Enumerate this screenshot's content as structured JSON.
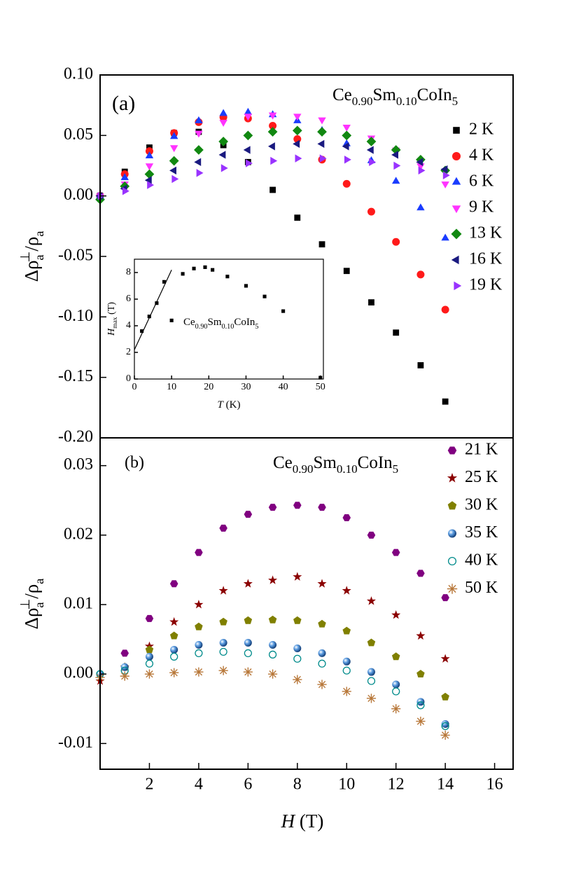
{
  "chart_data": [
    {
      "type": "scatter",
      "panel_label": "(a)",
      "compound": [
        "Ce",
        "0.90",
        "Sm",
        "0.10",
        "CoIn",
        "5"
      ],
      "ylabel": [
        "Δρ",
        "a",
        "⊥",
        "/ρ",
        "a"
      ],
      "xlim": [
        0,
        16.75
      ],
      "ylim": [
        -0.2,
        0.1
      ],
      "yticks": [
        {
          "value": 0.1,
          "label": "0.10"
        },
        0.05,
        {
          "value": 0.0,
          "label": "0.00"
        },
        -0.05,
        {
          "value": -0.1,
          "label": "-0.10"
        },
        -0.15,
        {
          "value": -0.2,
          "label": "-0.20"
        }
      ],
      "x": [
        0,
        1,
        2,
        3,
        4,
        5,
        6,
        7,
        8,
        9,
        10,
        11,
        12,
        13,
        14
      ],
      "series": [
        {
          "name": "2 K",
          "color": "#000000",
          "marker": "square",
          "values": [
            0,
            0.02,
            0.04,
            0.052,
            0.053,
            0.042,
            0.028,
            0.005,
            -0.018,
            -0.04,
            -0.062,
            -0.088,
            -0.113,
            -0.14,
            -0.17
          ]
        },
        {
          "name": "4 K",
          "color": "#ff1a1a",
          "marker": "circle",
          "values": [
            0,
            0.018,
            0.037,
            0.052,
            0.061,
            0.065,
            0.064,
            0.058,
            0.047,
            0.03,
            0.01,
            -0.013,
            -0.038,
            -0.065,
            -0.094
          ]
        },
        {
          "name": "6 K",
          "color": "#1a3cff",
          "marker": "triangle-up",
          "values": [
            0,
            0.015,
            0.033,
            0.049,
            0.062,
            0.068,
            0.069,
            0.067,
            0.062,
            0.054,
            0.043,
            0.029,
            0.012,
            -0.01,
            -0.035
          ]
        },
        {
          "name": "9 K",
          "color": "#ff33ff",
          "marker": "triangle-down",
          "values": [
            0,
            0.01,
            0.025,
            0.04,
            0.052,
            0.061,
            0.066,
            0.067,
            0.066,
            0.063,
            0.057,
            0.048,
            0.038,
            0.025,
            0.01
          ]
        },
        {
          "name": "13 K",
          "color": "#118811",
          "marker": "diamond",
          "values": [
            -0.003,
            0.008,
            0.018,
            0.029,
            0.038,
            0.045,
            0.05,
            0.053,
            0.054,
            0.053,
            0.05,
            0.045,
            0.038,
            0.03,
            0.021
          ]
        },
        {
          "name": "16 K",
          "color": "#1a1a80",
          "marker": "triangle-left",
          "values": [
            0,
            0.006,
            0.013,
            0.021,
            0.028,
            0.034,
            0.038,
            0.041,
            0.043,
            0.043,
            0.041,
            0.038,
            0.034,
            0.028,
            0.022
          ]
        },
        {
          "name": "19 K",
          "color": "#9933ff",
          "marker": "triangle-right",
          "values": [
            0,
            0.004,
            0.009,
            0.014,
            0.019,
            0.023,
            0.027,
            0.029,
            0.031,
            0.031,
            0.03,
            0.028,
            0.025,
            0.021,
            0.017
          ]
        }
      ]
    },
    {
      "type": "scatter",
      "panel_label": "(b)",
      "compound": [
        "Ce",
        "0.90",
        "Sm",
        "0.10",
        "CoIn",
        "5"
      ],
      "ylabel": [
        "Δρ",
        "a",
        "⊥",
        "/ρ",
        "a"
      ],
      "xlabel": [
        "H",
        " (T)"
      ],
      "xlim": [
        0,
        16.75
      ],
      "ylim": [
        -0.0137,
        0.034
      ],
      "xticks": [
        2,
        4,
        6,
        8,
        10,
        12,
        14,
        16
      ],
      "yticks": [
        0.03,
        0.02,
        0.01,
        {
          "value": 0.0,
          "label": "0.00"
        },
        -0.01
      ],
      "x": [
        0,
        1,
        2,
        3,
        4,
        5,
        6,
        7,
        8,
        9,
        10,
        11,
        12,
        13,
        14
      ],
      "series": [
        {
          "name": "21 K",
          "color": "#800080",
          "marker": "hexagon",
          "values": [
            0,
            0.003,
            0.008,
            0.013,
            0.0175,
            0.021,
            0.023,
            0.024,
            0.0243,
            0.024,
            0.0225,
            0.02,
            0.0175,
            0.0145,
            0.011
          ]
        },
        {
          "name": "25 K",
          "color": "#8b0000",
          "marker": "star",
          "values": [
            -0.001,
            0.001,
            0.004,
            0.0075,
            0.01,
            0.012,
            0.013,
            0.0135,
            0.014,
            0.013,
            0.012,
            0.0105,
            0.0085,
            0.0055,
            0.0022
          ]
        },
        {
          "name": "30 K",
          "color": "#808000",
          "marker": "pentagon",
          "values": [
            0,
            0.001,
            0.0035,
            0.0055,
            0.0068,
            0.0075,
            0.0077,
            0.0078,
            0.0077,
            0.0072,
            0.0062,
            0.0045,
            0.0025,
            0,
            -0.0033
          ]
        },
        {
          "name": "35 K",
          "color": "#2a6db5",
          "marker": "sphere",
          "values": [
            0,
            0.001,
            0.0025,
            0.0035,
            0.0042,
            0.0045,
            0.0045,
            0.0042,
            0.0037,
            0.003,
            0.0018,
            0.0003,
            -0.0015,
            -0.004,
            -0.0072
          ]
        },
        {
          "name": "40 K",
          "color": "#008b8b",
          "marker": "open-circle",
          "values": [
            0,
            0.0005,
            0.0015,
            0.0025,
            0.003,
            0.0032,
            0.003,
            0.0028,
            0.0022,
            0.0015,
            0.0005,
            -0.001,
            -0.0025,
            -0.0045,
            -0.0075
          ]
        },
        {
          "name": "50 K",
          "color": "#b8783a",
          "marker": "asterisk",
          "values": [
            -0.0005,
            -0.0003,
            0,
            0.0002,
            0.0003,
            0.0005,
            0.0003,
            0,
            -0.0008,
            -0.0015,
            -0.0025,
            -0.0035,
            -0.005,
            -0.0068,
            -0.0088
          ]
        }
      ]
    },
    {
      "type": "scatter",
      "compound": [
        "Ce",
        "0.90",
        "Sm",
        "0.10",
        "CoIn",
        "5"
      ],
      "xlabel": [
        "T",
        " (K)"
      ],
      "ylabel": [
        "H",
        "max",
        " (T)"
      ],
      "xlim": [
        0,
        50.8
      ],
      "ylim": [
        0,
        9
      ],
      "xticks": [
        0,
        10,
        20,
        30,
        40,
        50
      ],
      "yticks": [
        0,
        2,
        4,
        6,
        8
      ],
      "x": [
        2,
        4,
        6,
        8,
        10,
        13,
        16,
        19,
        21,
        25,
        30,
        35,
        40,
        50
      ],
      "series": [
        {
          "color": "#000000",
          "marker": "square",
          "values": [
            3.6,
            4.7,
            5.7,
            7.3,
            4.4,
            7.9,
            8.3,
            8.4,
            8.2,
            7.7,
            7.0,
            6.2,
            5.1,
            0.1
          ]
        }
      ],
      "fit": {
        "x": [
          0,
          10
        ],
        "y": [
          2.2,
          8.2
        ]
      }
    }
  ]
}
